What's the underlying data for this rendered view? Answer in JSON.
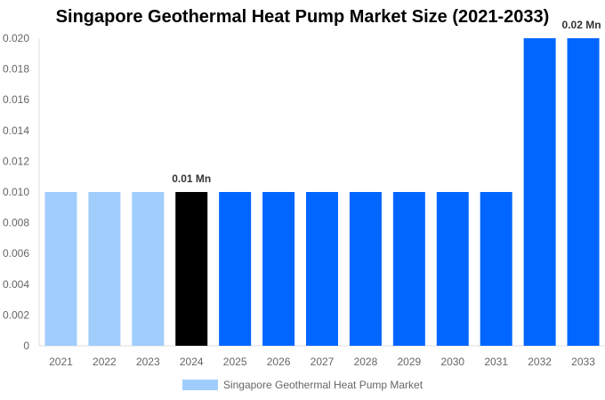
{
  "chart_data": {
    "type": "bar",
    "title": "Singapore Geothermal Heat Pump Market Size (2021-2033)",
    "categories": [
      "2021",
      "2022",
      "2023",
      "2024",
      "2025",
      "2026",
      "2027",
      "2028",
      "2029",
      "2030",
      "2031",
      "2032",
      "2033"
    ],
    "series": [
      {
        "name": "Singapore Geothermal Heat Pump Market",
        "values": [
          0.01,
          0.01,
          0.01,
          0.01,
          0.01,
          0.01,
          0.01,
          0.01,
          0.01,
          0.01,
          0.01,
          0.02,
          0.02
        ]
      }
    ],
    "bar_colors": [
      "#a1cdfd",
      "#a1cdfd",
      "#a1cdfd",
      "#000000",
      "#0066ff",
      "#0066ff",
      "#0066ff",
      "#0066ff",
      "#0066ff",
      "#0066ff",
      "#0066ff",
      "#0066ff",
      "#0066ff"
    ],
    "data_labels": [
      {
        "category": "2024",
        "text": "0.01 Mn"
      },
      {
        "category": "2033",
        "text": "0.02 Mn"
      }
    ],
    "yticks": [
      "0",
      "0.002",
      "0.004",
      "0.006",
      "0.008",
      "0.010",
      "0.012",
      "0.014",
      "0.016",
      "0.018",
      "0.020"
    ],
    "ylim": [
      0,
      0.02
    ],
    "xlabel": "",
    "ylabel": "",
    "grid": false,
    "legend_position": "bottom",
    "legend_color": "#a1cdfd"
  }
}
